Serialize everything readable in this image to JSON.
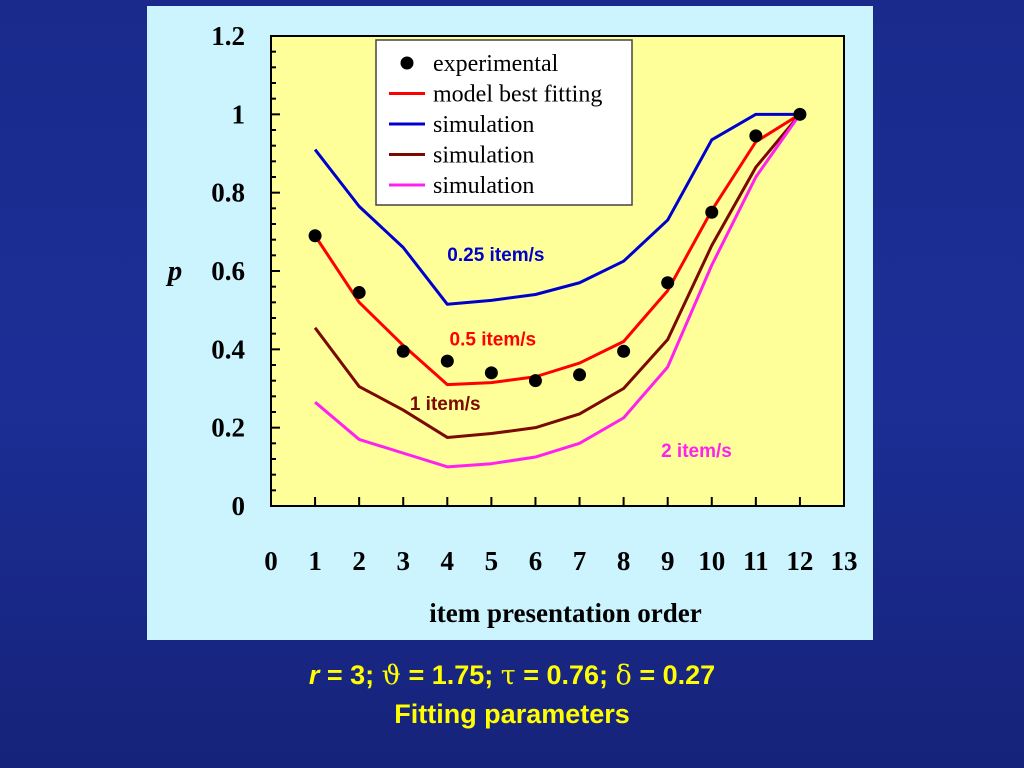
{
  "chart_data": {
    "type": "line",
    "xlabel": "item presentation order",
    "ylabel": "p",
    "xlim": [
      0,
      13
    ],
    "ylim": [
      0,
      1.2
    ],
    "x_ticks": [
      "0",
      "1",
      "2",
      "3",
      "4",
      "5",
      "6",
      "7",
      "8",
      "9",
      "10",
      "11",
      "12",
      "13"
    ],
    "y_ticks": [
      "0",
      "0.2",
      "0.4",
      "0.6",
      "0.8",
      "1",
      "1.2"
    ],
    "background": "#ffff99",
    "legend_position": "top-right",
    "legend": [
      {
        "label": "experimental",
        "marker": "dot",
        "color": "#000000"
      },
      {
        "label": "model best fitting",
        "marker": "line",
        "color": "#ff0000"
      },
      {
        "label": "simulation",
        "marker": "line",
        "color": "#0000cc"
      },
      {
        "label": "simulation",
        "marker": "line",
        "color": "#7a0a00"
      },
      {
        "label": "simulation",
        "marker": "line",
        "color": "#ff22ee"
      }
    ],
    "series": [
      {
        "kind": "points",
        "color": "#000000",
        "x": [
          1,
          2,
          3,
          4,
          5,
          6,
          7,
          8,
          9,
          10,
          11,
          12
        ],
        "y": [
          0.69,
          0.545,
          0.395,
          0.37,
          0.34,
          0.32,
          0.335,
          0.395,
          0.57,
          0.75,
          0.945,
          1.0
        ]
      },
      {
        "kind": "line",
        "color": "#ff0000",
        "annotation": "0.5 item/s",
        "x": [
          1,
          2,
          3,
          4,
          5,
          6,
          7,
          8,
          9,
          10,
          11,
          12
        ],
        "y": [
          0.69,
          0.52,
          0.41,
          0.31,
          0.315,
          0.33,
          0.365,
          0.42,
          0.55,
          0.755,
          0.93,
          1.0
        ]
      },
      {
        "kind": "line",
        "color": "#0000cc",
        "annotation": "0.25 item/s",
        "x": [
          1,
          2,
          3,
          4,
          5,
          6,
          7,
          8,
          9,
          10,
          11,
          12
        ],
        "y": [
          0.91,
          0.765,
          0.66,
          0.515,
          0.525,
          0.54,
          0.57,
          0.625,
          0.73,
          0.935,
          1.0,
          1.0
        ]
      },
      {
        "kind": "line",
        "color": "#7a0a00",
        "annotation": "1 item/s",
        "x": [
          1,
          2,
          3,
          4,
          5,
          6,
          7,
          8,
          9,
          10,
          11,
          12
        ],
        "y": [
          0.455,
          0.305,
          0.245,
          0.175,
          0.185,
          0.2,
          0.235,
          0.3,
          0.425,
          0.665,
          0.865,
          1.0
        ]
      },
      {
        "kind": "line",
        "color": "#ff22ee",
        "annotation": "2 item/s",
        "x": [
          1,
          2,
          3,
          4,
          5,
          6,
          7,
          8,
          9,
          10,
          11,
          12
        ],
        "y": [
          0.265,
          0.17,
          0.135,
          0.1,
          0.108,
          0.125,
          0.16,
          0.225,
          0.355,
          0.615,
          0.84,
          1.0
        ]
      }
    ],
    "annotations": [
      {
        "text": "0.25 item/s",
        "color": "#0000cc",
        "x": 4.0,
        "y": 0.625
      },
      {
        "text": "0.5 item/s",
        "color": "#ff0000",
        "x": 4.05,
        "y": 0.41
      },
      {
        "text": "1 item/s",
        "color": "#7a0a00",
        "x": 3.15,
        "y": 0.245
      },
      {
        "text": "2 item/s",
        "color": "#ff22ee",
        "x": 8.85,
        "y": 0.125
      }
    ]
  },
  "caption": {
    "r_var": "r",
    "r_eq": " = 3; ",
    "theta_sym": "ϑ",
    "theta_eq": " = 1.75; ",
    "tau_sym": "τ",
    "tau_eq": " = 0.76; ",
    "delta_sym": "δ",
    "delta_eq": " = 0.27",
    "subtitle": "Fitting parameters"
  }
}
